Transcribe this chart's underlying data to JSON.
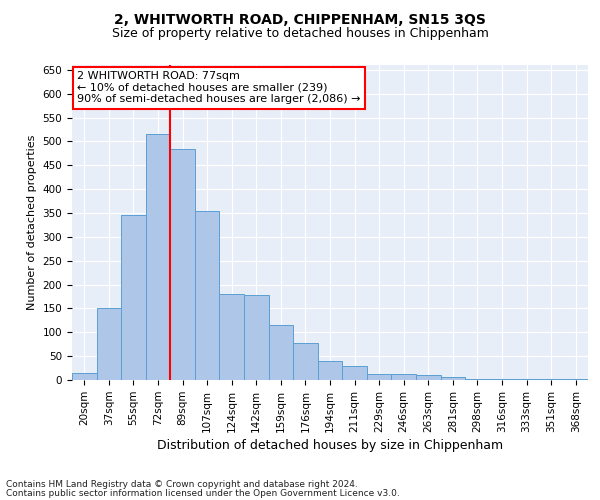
{
  "title": "2, WHITWORTH ROAD, CHIPPENHAM, SN15 3QS",
  "subtitle": "Size of property relative to detached houses in Chippenham",
  "xlabel": "Distribution of detached houses by size in Chippenham",
  "ylabel": "Number of detached properties",
  "categories": [
    "20sqm",
    "37sqm",
    "55sqm",
    "72sqm",
    "89sqm",
    "107sqm",
    "124sqm",
    "142sqm",
    "159sqm",
    "176sqm",
    "194sqm",
    "211sqm",
    "229sqm",
    "246sqm",
    "263sqm",
    "281sqm",
    "298sqm",
    "316sqm",
    "333sqm",
    "351sqm",
    "368sqm"
  ],
  "values": [
    15,
    150,
    345,
    515,
    485,
    355,
    180,
    178,
    115,
    77,
    40,
    30,
    12,
    13,
    11,
    7,
    3,
    3,
    2,
    2,
    2
  ],
  "bar_color": "#aec6e8",
  "bar_edge_color": "#5a9fd4",
  "vline_color": "red",
  "annotation_line1": "2 WHITWORTH ROAD: 77sqm",
  "annotation_line2": "← 10% of detached houses are smaller (239)",
  "annotation_line3": "90% of semi-detached houses are larger (2,086) →",
  "annotation_box_color": "white",
  "annotation_box_edge": "red",
  "ylim": [
    0,
    660
  ],
  "yticks": [
    0,
    50,
    100,
    150,
    200,
    250,
    300,
    350,
    400,
    450,
    500,
    550,
    600,
    650
  ],
  "background_color": "#e8eef8",
  "footer1": "Contains HM Land Registry data © Crown copyright and database right 2024.",
  "footer2": "Contains public sector information licensed under the Open Government Licence v3.0.",
  "title_fontsize": 10,
  "subtitle_fontsize": 9,
  "xlabel_fontsize": 9,
  "ylabel_fontsize": 8,
  "tick_fontsize": 7.5,
  "annotation_fontsize": 8,
  "footer_fontsize": 6.5
}
